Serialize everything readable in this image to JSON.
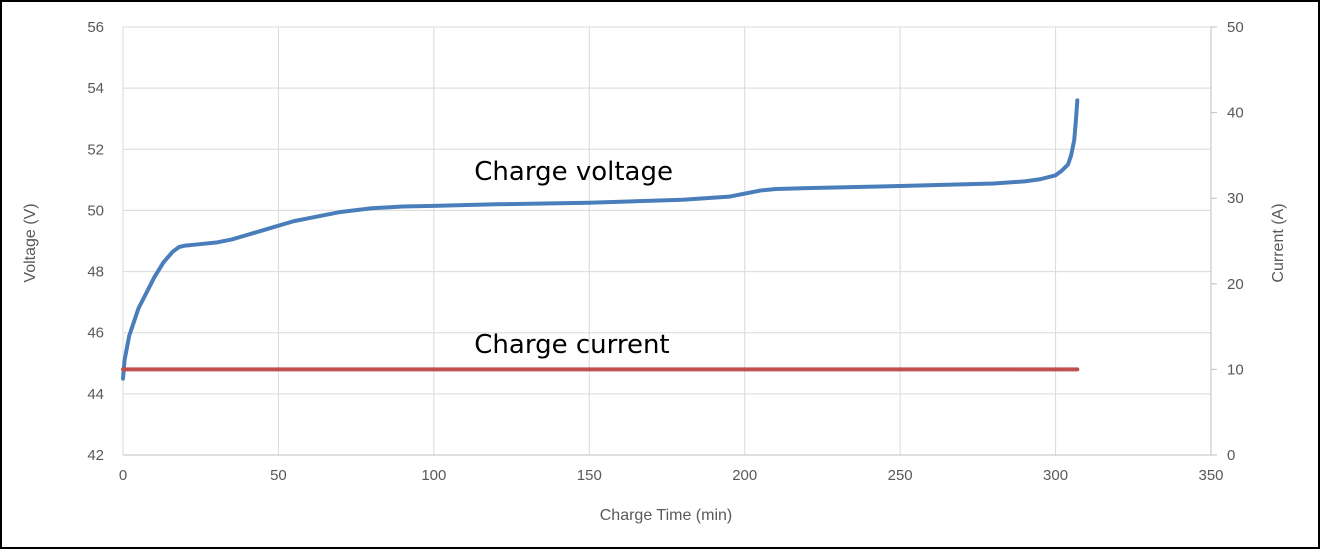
{
  "chart_data": {
    "type": "line",
    "xlabel": "Charge Time (min)",
    "ylabel": "Voltage (V)",
    "y2label": "Current (A)",
    "xlim": [
      0,
      350
    ],
    "ylim": [
      42,
      56
    ],
    "y2lim": [
      0,
      50
    ],
    "xticks": [
      0,
      50,
      100,
      150,
      200,
      250,
      300,
      350
    ],
    "yticks": [
      42,
      44,
      46,
      48,
      50,
      52,
      54,
      56
    ],
    "y2ticks": [
      0,
      10,
      20,
      30,
      40,
      50
    ],
    "grid": true,
    "legend": "none",
    "series": [
      {
        "axis": "left",
        "color": "#4a7ebb",
        "x": [
          0,
          0.5,
          2,
          5,
          8,
          10,
          13,
          16,
          18,
          20,
          25,
          30,
          35,
          40,
          45,
          50,
          55,
          60,
          70,
          80,
          90,
          100,
          120,
          150,
          180,
          195,
          200,
          205,
          210,
          220,
          250,
          280,
          290,
          295,
          300,
          302,
          304,
          305,
          306,
          306.5,
          307
        ],
        "y": [
          44.5,
          45.1,
          45.9,
          46.8,
          47.4,
          47.8,
          48.3,
          48.65,
          48.8,
          48.85,
          48.9,
          48.95,
          49.05,
          49.2,
          49.35,
          49.5,
          49.65,
          49.75,
          49.95,
          50.07,
          50.13,
          50.15,
          50.2,
          50.25,
          50.35,
          50.45,
          50.55,
          50.65,
          50.7,
          50.73,
          50.8,
          50.88,
          50.95,
          51.02,
          51.15,
          51.3,
          51.5,
          51.8,
          52.3,
          52.9,
          53.6
        ]
      },
      {
        "axis": "right",
        "color": "#c0504d",
        "x": [
          0,
          307
        ],
        "y": [
          10,
          10
        ]
      }
    ],
    "annotations": [
      {
        "text": "Charge voltage",
        "x": 113,
        "y": 51.0
      },
      {
        "text": "Charge current",
        "x": 113,
        "y": 11.9
      }
    ]
  }
}
